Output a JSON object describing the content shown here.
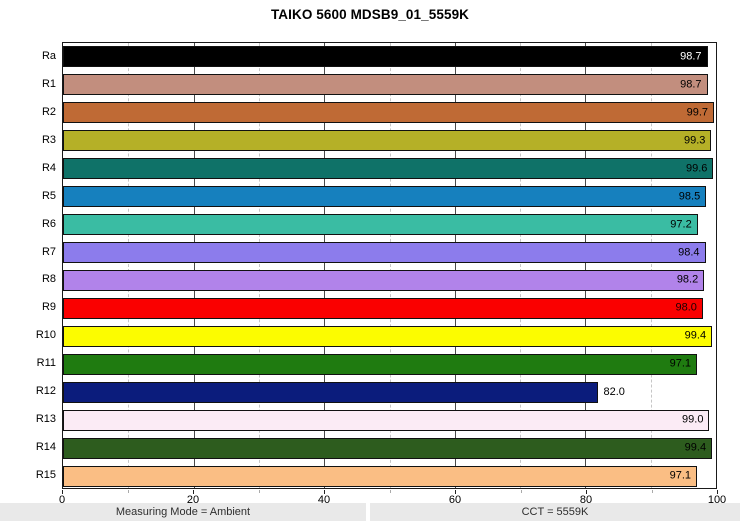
{
  "title": "TAIKO 5600 MDSB9_01_5559K",
  "footer": {
    "left": "Measuring Mode = Ambient",
    "right": "CCT = 5559K"
  },
  "chart_data": {
    "type": "bar",
    "orientation": "horizontal",
    "title": "TAIKO 5600 MDSB9_01_5559K",
    "categories": [
      "Ra",
      "R1",
      "R2",
      "R3",
      "R4",
      "R5",
      "R6",
      "R7",
      "R8",
      "R9",
      "R10",
      "R11",
      "R12",
      "R13",
      "R14",
      "R15"
    ],
    "values": [
      98.7,
      98.7,
      99.7,
      99.3,
      99.6,
      98.5,
      97.2,
      98.4,
      98.2,
      98.0,
      99.4,
      97.1,
      82.0,
      99.0,
      99.4,
      97.1
    ],
    "bar_colors": [
      "#000000",
      "#C28E7E",
      "#BF6A35",
      "#B5B027",
      "#0F7268",
      "#1680BE",
      "#3ABCA3",
      "#8C7CEC",
      "#B183EA",
      "#FA0000",
      "#FCFC00",
      "#1F7B10",
      "#0B1C7C",
      "#FBEBF5",
      "#2D5C1E",
      "#FABE84"
    ],
    "value_label_colors": [
      "#ffffff",
      "#000000",
      "#000000",
      "#000000",
      "#000000",
      "#000000",
      "#000000",
      "#000000",
      "#000000",
      "#1a0000",
      "#000000",
      "#000000",
      "#000000",
      "#000000",
      "#000000",
      "#000000"
    ],
    "xlim": [
      0,
      100
    ],
    "x_tick_labels": [
      "0",
      "20",
      "40",
      "60",
      "80",
      "100"
    ],
    "major_grid_every": 20,
    "minor_grid_every": 10,
    "grid": "vertical, major solid dark / minor dashed light",
    "legend": "none",
    "value_label_decimals": 1,
    "outside_label_threshold": 90
  }
}
